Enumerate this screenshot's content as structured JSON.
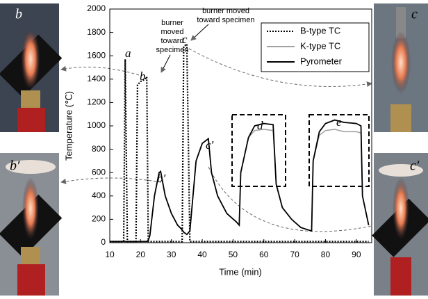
{
  "chart_data": {
    "type": "line",
    "x_label": "Time (min)",
    "y_label": "Temperature (℃)",
    "xlim": [
      10,
      95
    ],
    "ylim": [
      0,
      2000
    ],
    "xticks": [
      10,
      20,
      30,
      40,
      50,
      60,
      70,
      80,
      90
    ],
    "yticks": [
      0,
      200,
      400,
      600,
      800,
      1000,
      1200,
      1400,
      1600,
      1800,
      2000
    ],
    "legend": "top-right",
    "x": [
      10,
      14.5,
      15,
      15.7,
      18.5,
      19,
      20,
      21.5,
      22,
      22.5,
      23,
      24.5,
      26,
      26.5,
      28,
      30,
      32,
      33.5,
      34,
      35,
      36,
      38,
      40,
      42,
      43,
      45,
      48,
      51,
      52,
      52.5,
      55,
      57,
      60,
      63,
      64,
      66,
      69,
      72,
      75.5,
      76,
      78,
      80,
      83,
      86,
      90,
      91.5,
      92,
      94
    ],
    "series": [
      {
        "name": "B-type TC",
        "color": "#000000",
        "style": "dotted",
        "values": [
          10,
          10,
          1570,
          10,
          10,
          1350,
          1380,
          1400,
          1420,
          10,
          10,
          10,
          10,
          10,
          10,
          10,
          10,
          10,
          1680,
          1700,
          10,
          10,
          10,
          10,
          10,
          10,
          10,
          10,
          10,
          10,
          10,
          10,
          10,
          10,
          10,
          10,
          10,
          10,
          10,
          10,
          10,
          10,
          10,
          10,
          10,
          10,
          10,
          10
        ]
      },
      {
        "name": "K-type TC",
        "color": "#a0a0a0",
        "style": "solid",
        "values": [
          10,
          10,
          10,
          10,
          10,
          10,
          10,
          10,
          10,
          20,
          60,
          400,
          600,
          610,
          400,
          250,
          150,
          110,
          90,
          70,
          100,
          700,
          850,
          890,
          600,
          400,
          250,
          180,
          150,
          600,
          900,
          960,
          970,
          960,
          500,
          300,
          200,
          130,
          100,
          700,
          920,
          960,
          970,
          950,
          950,
          940,
          400,
          150
        ]
      },
      {
        "name": "Pyrometer",
        "color": "#000000",
        "style": "solid",
        "values": [
          10,
          10,
          10,
          10,
          10,
          10,
          10,
          10,
          10,
          20,
          60,
          400,
          600,
          610,
          400,
          250,
          150,
          110,
          90,
          70,
          100,
          700,
          850,
          890,
          600,
          400,
          250,
          180,
          150,
          600,
          900,
          1000,
          1020,
          1010,
          500,
          300,
          200,
          130,
          100,
          700,
          950,
          1020,
          1050,
          1030,
          1020,
          1000,
          400,
          150
        ]
      }
    ],
    "annotations": [
      "a",
      "b",
      "c",
      "b′",
      "c′",
      "d",
      "e"
    ],
    "note_1": [
      "burner",
      "moved",
      "toward",
      "specimen"
    ],
    "note_2": [
      "burner moved",
      "toward specimen"
    ],
    "photos": [
      "b",
      "b′",
      "c",
      "c′"
    ]
  }
}
